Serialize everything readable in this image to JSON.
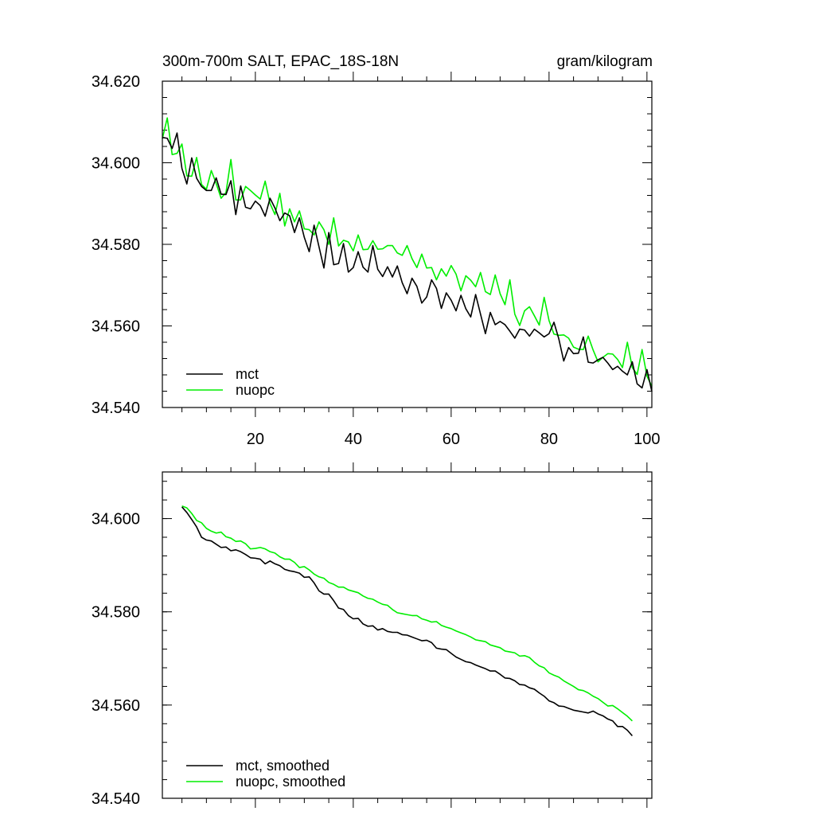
{
  "chart_data": [
    {
      "type": "line",
      "title": "300m-700m SALT, EPAC_18S-18N",
      "units": "gram/kilogram",
      "xlabel": "",
      "ylabel": "",
      "xlim": [
        1,
        101
      ],
      "ylim": [
        34.54,
        34.62
      ],
      "xticks": [
        20,
        40,
        60,
        80,
        100
      ],
      "xtick_labels": [
        "20",
        "40",
        "60",
        "80",
        "100"
      ],
      "yticks": [
        34.54,
        34.56,
        34.58,
        34.6,
        34.62
      ],
      "ytick_labels": [
        "34.540",
        "34.560",
        "34.580",
        "34.600",
        "34.620"
      ],
      "legend_position": "bottom-left",
      "series": [
        {
          "name": "mct",
          "color": "#000000",
          "x": [
            1,
            2,
            3,
            4,
            5,
            6,
            7,
            8,
            9,
            10,
            11,
            12,
            13,
            14,
            15,
            16,
            17,
            18,
            19,
            20,
            21,
            22,
            23,
            24,
            25,
            26,
            27,
            28,
            29,
            30,
            31,
            32,
            33,
            34,
            35,
            36,
            37,
            38,
            39,
            40,
            41,
            42,
            43,
            44,
            45,
            46,
            47,
            48,
            49,
            50,
            51,
            52,
            53,
            54,
            55,
            56,
            57,
            58,
            59,
            60,
            61,
            62,
            63,
            64,
            65,
            66,
            67,
            68,
            69,
            70,
            71,
            72,
            73,
            74,
            75,
            76,
            77,
            78,
            79,
            80,
            81,
            82,
            83,
            84,
            85,
            86,
            87,
            88,
            89,
            90,
            91,
            92,
            93,
            94,
            95,
            96,
            97,
            98,
            99,
            100,
            101
          ],
          "values": [
            34.6062,
            34.606,
            34.6035,
            34.6073,
            34.5986,
            34.5948,
            34.6012,
            34.5962,
            34.5942,
            34.5932,
            34.5932,
            34.5963,
            34.5923,
            34.5922,
            34.5956,
            34.5873,
            34.5943,
            34.5891,
            34.5887,
            34.5906,
            34.5895,
            34.5869,
            34.5913,
            34.5889,
            34.5858,
            34.5877,
            34.587,
            34.5829,
            34.5865,
            34.5817,
            34.5782,
            34.5847,
            34.5794,
            34.5742,
            34.5829,
            34.575,
            34.5753,
            34.5802,
            34.5732,
            34.5743,
            34.5782,
            34.5744,
            34.5732,
            34.5797,
            34.5739,
            34.5721,
            34.5745,
            34.572,
            34.5747,
            34.5706,
            34.5679,
            34.5717,
            34.5697,
            34.5656,
            34.5671,
            34.5713,
            34.5692,
            34.5643,
            34.5681,
            34.5663,
            34.5637,
            34.5675,
            34.5642,
            34.5622,
            34.5677,
            34.5629,
            34.5581,
            34.5633,
            34.5603,
            34.5611,
            34.5603,
            34.5587,
            34.557,
            34.5592,
            34.559,
            34.5575,
            34.5592,
            34.5583,
            34.5573,
            34.5581,
            34.5609,
            34.5568,
            34.5514,
            34.5547,
            34.5532,
            34.5533,
            34.5573,
            34.5511,
            34.5509,
            34.5517,
            34.5523,
            34.5509,
            34.5493,
            34.5501,
            34.5489,
            34.548,
            34.5512,
            34.5458,
            34.5448,
            34.5493,
            34.5439
          ]
        },
        {
          "name": "nuopc",
          "color": "#00ee00",
          "x": [
            1,
            2,
            3,
            4,
            5,
            6,
            7,
            8,
            9,
            10,
            11,
            12,
            13,
            14,
            15,
            16,
            17,
            18,
            19,
            20,
            21,
            22,
            23,
            24,
            25,
            26,
            27,
            28,
            29,
            30,
            31,
            32,
            33,
            34,
            35,
            36,
            37,
            38,
            39,
            40,
            41,
            42,
            43,
            44,
            45,
            46,
            47,
            48,
            49,
            50,
            51,
            52,
            53,
            54,
            55,
            56,
            57,
            58,
            59,
            60,
            61,
            62,
            63,
            64,
            65,
            66,
            67,
            68,
            69,
            70,
            71,
            72,
            73,
            74,
            75,
            76,
            77,
            78,
            79,
            80,
            81,
            82,
            83,
            84,
            85,
            86,
            87,
            88,
            89,
            90,
            91,
            92,
            93,
            94,
            95,
            96,
            97,
            98,
            99,
            100,
            101
          ],
          "values": [
            34.6059,
            34.611,
            34.602,
            34.6023,
            34.6046,
            34.5968,
            34.5967,
            34.6013,
            34.5947,
            34.5935,
            34.5981,
            34.5949,
            34.5913,
            34.5927,
            34.6008,
            34.5909,
            34.5909,
            34.5942,
            34.5932,
            34.5921,
            34.5911,
            34.5955,
            34.59,
            34.5873,
            34.5925,
            34.5845,
            34.5887,
            34.5855,
            34.5882,
            34.5838,
            34.5836,
            34.5823,
            34.5855,
            34.5836,
            34.58,
            34.5865,
            34.5796,
            34.581,
            34.5806,
            34.5784,
            34.5823,
            34.5787,
            34.5788,
            34.5809,
            34.5788,
            34.5789,
            34.5797,
            34.5797,
            34.5779,
            34.5773,
            34.5797,
            34.5765,
            34.5743,
            34.5776,
            34.5742,
            34.5743,
            34.5713,
            34.574,
            34.5722,
            34.5748,
            34.5727,
            34.5686,
            34.5723,
            34.5712,
            34.5696,
            34.5731,
            34.5684,
            34.5677,
            34.5725,
            34.5679,
            34.5652,
            34.5713,
            34.5629,
            34.5601,
            34.5637,
            34.5647,
            34.5625,
            34.5602,
            34.567,
            34.5613,
            34.558,
            34.5577,
            34.5578,
            34.557,
            34.5548,
            34.5543,
            34.5542,
            34.5575,
            34.5541,
            34.5512,
            34.5523,
            34.5532,
            34.5531,
            34.5518,
            34.5498,
            34.556,
            34.5498,
            34.5481,
            34.5542,
            34.5477,
            34.5452
          ]
        }
      ]
    },
    {
      "type": "line",
      "title": "",
      "xlabel": "",
      "ylabel": "",
      "xlim": [
        1,
        101
      ],
      "ylim": [
        34.54,
        34.61
      ],
      "xticks": [
        20,
        40,
        60,
        80,
        100
      ],
      "yticks": [
        34.54,
        34.56,
        34.58,
        34.6
      ],
      "ytick_labels": [
        "34.540",
        "34.560",
        "34.580",
        "34.600"
      ],
      "legend_position": "bottom-left",
      "series": [
        {
          "name": "mct, smoothed",
          "color": "#000000",
          "x": [
            5,
            6,
            7,
            8,
            9,
            10,
            11,
            12,
            13,
            14,
            15,
            16,
            17,
            18,
            19,
            20,
            21,
            22,
            23,
            24,
            25,
            26,
            27,
            28,
            29,
            30,
            31,
            32,
            33,
            34,
            35,
            36,
            37,
            38,
            39,
            40,
            41,
            42,
            43,
            44,
            45,
            46,
            47,
            48,
            49,
            50,
            51,
            52,
            53,
            54,
            55,
            56,
            57,
            58,
            59,
            60,
            61,
            62,
            63,
            64,
            65,
            66,
            67,
            68,
            69,
            70,
            71,
            72,
            73,
            74,
            75,
            76,
            77,
            78,
            79,
            80,
            81,
            82,
            83,
            84,
            85,
            86,
            87,
            88,
            89,
            90,
            91,
            92,
            93,
            94,
            95,
            96,
            97
          ],
          "values": [
            34.6025,
            34.6013,
            34.5998,
            34.5982,
            34.596,
            34.5954,
            34.5952,
            34.5945,
            34.5938,
            34.5939,
            34.5931,
            34.5933,
            34.5929,
            34.5923,
            34.5916,
            34.5915,
            34.5913,
            34.5903,
            34.5909,
            34.5903,
            34.5899,
            34.5891,
            34.5888,
            34.5886,
            34.5883,
            34.5874,
            34.5875,
            34.5862,
            34.5845,
            34.5838,
            34.5838,
            34.5824,
            34.5808,
            34.5805,
            34.5792,
            34.5785,
            34.5786,
            34.5774,
            34.5769,
            34.577,
            34.5761,
            34.5764,
            34.5758,
            34.5756,
            34.5756,
            34.5751,
            34.575,
            34.5746,
            34.5742,
            34.5738,
            34.5739,
            34.5734,
            34.5722,
            34.572,
            34.5719,
            34.5711,
            34.5703,
            34.5698,
            34.5693,
            34.5691,
            34.5686,
            34.5682,
            34.5678,
            34.5673,
            34.5673,
            34.5666,
            34.5658,
            34.5657,
            34.5652,
            34.5644,
            34.5643,
            34.5637,
            34.5634,
            34.5626,
            34.5619,
            34.5609,
            34.5605,
            34.5598,
            34.5597,
            34.5593,
            34.5589,
            34.5587,
            34.5585,
            34.5583,
            34.5587,
            34.5581,
            34.5577,
            34.557,
            34.5566,
            34.5554,
            34.5554,
            34.5546,
            34.5534
          ]
        },
        {
          "name": "nuopc, smoothed",
          "color": "#00ee00",
          "x": [
            5,
            6,
            7,
            8,
            9,
            10,
            11,
            12,
            13,
            14,
            15,
            16,
            17,
            18,
            19,
            20,
            21,
            22,
            23,
            24,
            25,
            26,
            27,
            28,
            29,
            30,
            31,
            32,
            33,
            34,
            35,
            36,
            37,
            38,
            39,
            40,
            41,
            42,
            43,
            44,
            45,
            46,
            47,
            48,
            49,
            50,
            51,
            52,
            53,
            54,
            55,
            56,
            57,
            58,
            59,
            60,
            61,
            62,
            63,
            64,
            65,
            66,
            67,
            68,
            69,
            70,
            71,
            72,
            73,
            74,
            75,
            76,
            77,
            78,
            79,
            80,
            81,
            82,
            83,
            84,
            85,
            86,
            87,
            88,
            89,
            90,
            91,
            92,
            93,
            94,
            95,
            96,
            97
          ],
          "values": [
            34.6027,
            34.6023,
            34.6011,
            34.5996,
            34.5991,
            34.5979,
            34.5973,
            34.5969,
            34.5971,
            34.5961,
            34.5958,
            34.5951,
            34.5952,
            34.5946,
            34.5935,
            34.5936,
            34.5938,
            34.5935,
            34.5929,
            34.5926,
            34.5918,
            34.5913,
            34.5913,
            34.5906,
            34.5895,
            34.5897,
            34.589,
            34.5881,
            34.5875,
            34.5872,
            34.5863,
            34.5859,
            34.5853,
            34.5853,
            34.5847,
            34.5844,
            34.5841,
            34.5834,
            34.5829,
            34.5827,
            34.5821,
            34.5816,
            34.5814,
            34.5805,
            34.5798,
            34.5796,
            34.5794,
            34.5792,
            34.5792,
            34.5785,
            34.5782,
            34.5778,
            34.5779,
            34.5771,
            34.5767,
            34.5764,
            34.5759,
            34.5755,
            34.5751,
            34.5746,
            34.574,
            34.5738,
            34.5736,
            34.5729,
            34.5726,
            34.5723,
            34.5716,
            34.5714,
            34.5712,
            34.5705,
            34.5706,
            34.5702,
            34.5692,
            34.5684,
            34.568,
            34.5669,
            34.5664,
            34.566,
            34.5652,
            34.5646,
            34.564,
            34.5633,
            34.5631,
            34.5626,
            34.5619,
            34.5614,
            34.5606,
            34.5598,
            34.5599,
            34.5592,
            34.5584,
            34.5576,
            34.5566
          ]
        }
      ]
    }
  ]
}
